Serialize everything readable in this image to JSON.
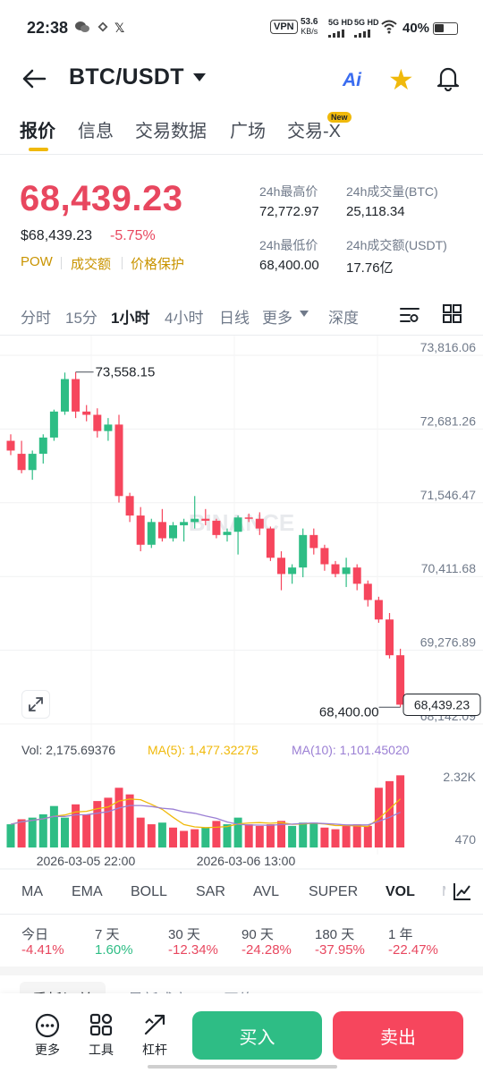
{
  "status_bar": {
    "time": "22:38",
    "vpn": "VPN",
    "net_speed_value": "53.6",
    "net_speed_unit": "KB/s",
    "sim1": "5G HD",
    "sim2": "5G HD",
    "battery": "40%"
  },
  "header": {
    "pair": "BTC/USDT",
    "ai_label": "Ai"
  },
  "tabs": [
    {
      "label": "报价"
    },
    {
      "label": "信息"
    },
    {
      "label": "交易数据"
    },
    {
      "label": "广场"
    },
    {
      "label": "交易-X"
    }
  ],
  "new_badge": "New",
  "price": {
    "last": "68,439.23",
    "usd": "$68,439.23",
    "change": "-5.75%",
    "tags": [
      "POW",
      "成交额",
      "价格保护"
    ]
  },
  "stats": {
    "high_label": "24h最高价",
    "high": "72,772.97",
    "vol_btc_label": "24h成交量(BTC)",
    "vol_btc": "25,118.34",
    "low_label": "24h最低价",
    "low": "68,400.00",
    "vol_usdt_label": "24h成交额(USDT)",
    "vol_usdt": "17.76亿"
  },
  "intervals": [
    "分时",
    "15分",
    "1小时",
    "4小时",
    "日线",
    "更多",
    "深度"
  ],
  "chart": {
    "y_ticks": [
      "73,816.06",
      "72,681.26",
      "71,546.47",
      "70,411.68",
      "69,276.89",
      "68,142.09"
    ],
    "y_tick_values": [
      73816.06,
      72681.26,
      71546.47,
      70411.68,
      69276.89,
      68142.09
    ],
    "high_label": "73,558.15",
    "low_label": "68,400.00",
    "last_label": "68,439.23",
    "watermark": "BINANCE",
    "vol_text": "Vol: 2,175.69376",
    "ma5_text": "MA(5): 1,477.32275",
    "ma10_text": "MA(10): 1,101.45020",
    "vol_ticks": [
      "2.32K",
      "470"
    ],
    "x_labels": [
      "2026-03-05 22:00",
      "2026-03-06 13:00"
    ],
    "colors": {
      "up": "#2ebd85",
      "down": "#f6465d",
      "ma5": "#f0b90b",
      "ma10": "#9b7fd4"
    }
  },
  "chart_data": {
    "type": "candlestick",
    "ylim": [
      68142.09,
      73816.06
    ],
    "candles": [
      [
        72500,
        72600,
        72280,
        72350
      ],
      [
        72300,
        72500,
        72000,
        72050
      ],
      [
        72050,
        72350,
        71900,
        72300
      ],
      [
        72300,
        72600,
        72150,
        72550
      ],
      [
        72550,
        72980,
        72500,
        72950
      ],
      [
        72950,
        73550,
        72900,
        73450
      ],
      [
        73450,
        73558,
        72850,
        72950
      ],
      [
        72950,
        73050,
        72800,
        72900
      ],
      [
        72900,
        73000,
        72550,
        72650
      ],
      [
        72650,
        72850,
        72500,
        72750
      ],
      [
        72750,
        72900,
        71550,
        71650
      ],
      [
        71650,
        71700,
        71250,
        71350
      ],
      [
        71350,
        71480,
        70800,
        70900
      ],
      [
        70900,
        71300,
        70850,
        71250
      ],
      [
        71250,
        71450,
        70950,
        71000
      ],
      [
        71000,
        71250,
        70950,
        71200
      ],
      [
        71200,
        71300,
        70950,
        71250
      ],
      [
        71250,
        71650,
        71150,
        71300
      ],
      [
        71300,
        71450,
        71200,
        71270
      ],
      [
        71270,
        71300,
        71000,
        71050
      ],
      [
        71050,
        71150,
        70950,
        71100
      ],
      [
        71100,
        71350,
        70750,
        71320
      ],
      [
        71320,
        71380,
        71250,
        71300
      ],
      [
        71300,
        71400,
        71050,
        71150
      ],
      [
        71150,
        71180,
        70650,
        70700
      ],
      [
        70700,
        70800,
        70200,
        70450
      ],
      [
        70450,
        70600,
        70300,
        70550
      ],
      [
        70550,
        71150,
        70400,
        71050
      ],
      [
        71050,
        71150,
        70750,
        70850
      ],
      [
        70850,
        70900,
        70500,
        70600
      ],
      [
        70600,
        70650,
        70400,
        70450
      ],
      [
        70450,
        70700,
        70250,
        70550
      ],
      [
        70550,
        70600,
        70200,
        70300
      ],
      [
        70300,
        70350,
        69950,
        70050
      ],
      [
        70050,
        70100,
        69700,
        69750
      ],
      [
        69750,
        69850,
        69150,
        69200
      ],
      [
        69200,
        69300,
        68400,
        68439
      ]
    ],
    "volume": {
      "ylim": [
        470,
        2320
      ],
      "bars": [
        [
          700,
          0
        ],
        [
          850,
          1
        ],
        [
          900,
          0
        ],
        [
          1000,
          0
        ],
        [
          1250,
          0
        ],
        [
          900,
          0
        ],
        [
          1300,
          1
        ],
        [
          1000,
          1
        ],
        [
          1400,
          1
        ],
        [
          1500,
          1
        ],
        [
          1800,
          1
        ],
        [
          1600,
          1
        ],
        [
          900,
          1
        ],
        [
          700,
          1
        ],
        [
          750,
          0
        ],
        [
          600,
          1
        ],
        [
          500,
          1
        ],
        [
          550,
          1
        ],
        [
          600,
          0
        ],
        [
          800,
          1
        ],
        [
          700,
          0
        ],
        [
          900,
          0
        ],
        [
          700,
          1
        ],
        [
          650,
          1
        ],
        [
          700,
          1
        ],
        [
          800,
          1
        ],
        [
          650,
          0
        ],
        [
          750,
          0
        ],
        [
          750,
          0
        ],
        [
          600,
          1
        ],
        [
          550,
          1
        ],
        [
          650,
          1
        ],
        [
          700,
          1
        ],
        [
          650,
          1
        ],
        [
          1800,
          1
        ],
        [
          2000,
          1
        ],
        [
          2175.69,
          1
        ]
      ],
      "ma5_last": 1477.32275,
      "ma10_last": 1101.4502
    }
  },
  "indicators": [
    "MA",
    "EMA",
    "BOLL",
    "SAR",
    "AVL",
    "SUPER",
    "VOL",
    "M"
  ],
  "performance": [
    {
      "label": "今日",
      "value": "-4.41%"
    },
    {
      "label": "7 天",
      "value": "1.60%"
    },
    {
      "label": "30 天",
      "value": "-12.34%"
    },
    {
      "label": "90 天",
      "value": "-24.28%"
    },
    {
      "label": "180 天",
      "value": "-37.95%"
    },
    {
      "label": "1 年",
      "value": "-22.47%"
    }
  ],
  "bottom_tabs": [
    "委托订单",
    "最新成交",
    "网络"
  ],
  "bottom_bar": {
    "more": "更多",
    "tools": "工具",
    "leverage": "杠杆",
    "buy": "买入",
    "sell": "卖出"
  }
}
